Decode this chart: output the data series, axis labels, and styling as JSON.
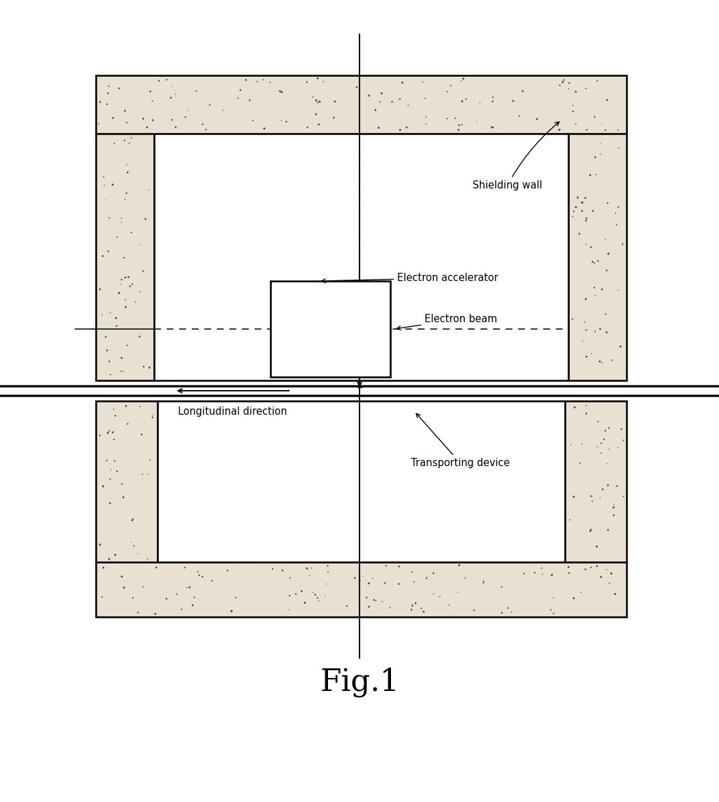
{
  "fig_width": 10.5,
  "fig_height": 11.7,
  "bg_color": "#ffffff",
  "wall_fill": "#e8e0d0",
  "line_color": "#111111",
  "title": "Fig.1",
  "title_fontsize": 32,
  "label_fontsize": 10.5,
  "shielding_wall_label": "Shielding wall",
  "electron_acc_label": "Electron accelerator",
  "electron_beam_label": "Electron beam",
  "longitudinal_label": "Longitudinal direction",
  "transporting_label": "Transporting device"
}
